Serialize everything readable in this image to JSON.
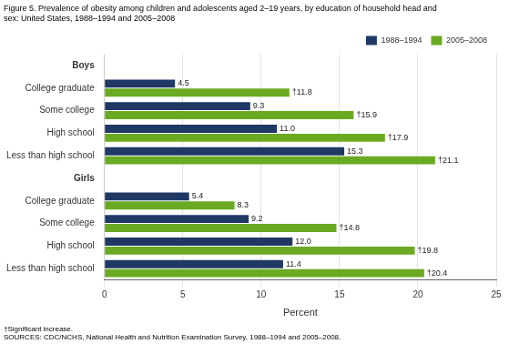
{
  "chart_data": {
    "type": "bar",
    "orientation": "horizontal",
    "title": [
      "Figure 5. Prevalence of obesity among children and adolescents aged 2–19 years, by education of household head and",
      "sex: United States, 1988–1994 and 2005–2008"
    ],
    "xlabel": "Percent",
    "categories": [
      "Boys",
      "College graduate",
      "Some college",
      "High school",
      "Less than high school",
      "Girls",
      "College graduate",
      "Some college",
      "High school",
      "Less than high school"
    ],
    "series": [
      {
        "name": "1988–1994",
        "color": "#1f3864",
        "values": [
          null,
          4.5,
          9.3,
          11.0,
          15.3,
          null,
          5.4,
          9.2,
          12.0,
          11.4
        ],
        "value_labels": [
          null,
          "4.5",
          "9.3",
          "11.0",
          "15.3",
          null,
          "5.4",
          "9.2",
          "12.0",
          "11.4"
        ]
      },
      {
        "name": "2005–2008",
        "color": "#6aaa22",
        "values": [
          null,
          11.8,
          15.9,
          17.9,
          21.1,
          null,
          8.3,
          14.8,
          19.8,
          20.4
        ],
        "value_labels": [
          null,
          "†11.8",
          "†15.9",
          "†17.9",
          "†21.1",
          null,
          "8.3",
          "†14.8",
          "†19.8",
          "†20.4"
        ]
      }
    ],
    "xlim": [
      0,
      25
    ],
    "xticks": [
      0,
      5,
      10,
      15,
      20,
      25
    ],
    "grid": true,
    "legend": "upper right",
    "data_labels": true,
    "footnotes": [
      "†Significant increase.",
      "SOURCES: CDC/NCHS, National Health and Nutrition Examination Survey, 1988–1994 and 2005–2008."
    ]
  }
}
